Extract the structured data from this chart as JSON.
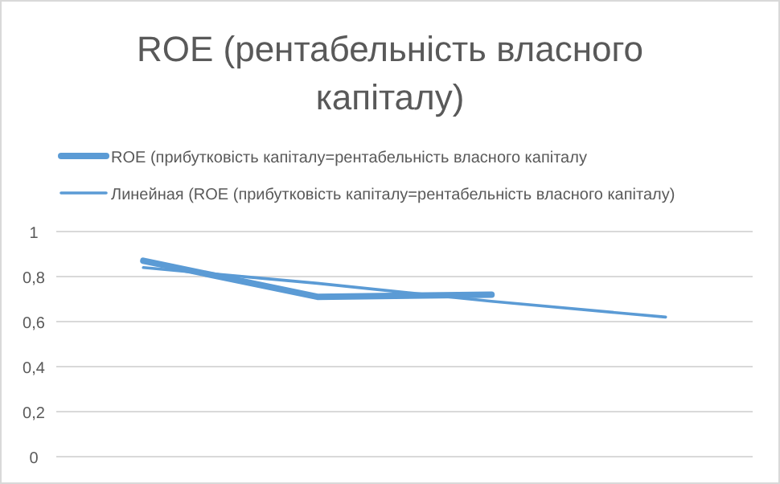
{
  "chart_data": {
    "type": "line",
    "title": "ROE (рентабельність власного капіталу)",
    "categories": [
      null,
      null,
      null,
      null
    ],
    "series": [
      {
        "name": "ROE (прибутковість капіталу=рентабельність власного капіталу",
        "color": "#5b9bd5",
        "values": [
          0.87,
          0.71,
          0.72,
          null
        ]
      },
      {
        "name": "Линейная (ROE (прибутковість капіталу=рентабельність власного капіталу)",
        "color": "#5b9bd5",
        "values": [
          0.84,
          0.77,
          0.69,
          0.62
        ]
      }
    ],
    "ylim": [
      0,
      1
    ],
    "yticks": [
      {
        "value": 0,
        "label": "0"
      },
      {
        "value": 0.2,
        "label": "0,2"
      },
      {
        "value": 0.4,
        "label": "0,4"
      },
      {
        "value": 0.6,
        "label": "0,6"
      },
      {
        "value": 0.8,
        "label": "0,8"
      },
      {
        "value": 1,
        "label": "1"
      }
    ],
    "grid": "y",
    "legend": "top",
    "marker": "none"
  }
}
